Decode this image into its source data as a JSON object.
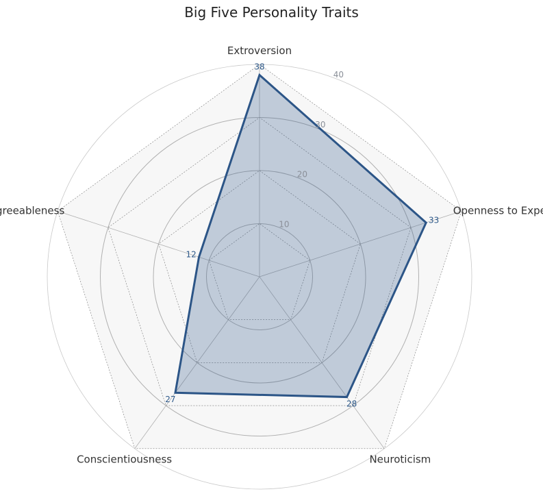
{
  "chart_data": {
    "type": "radar",
    "title": "Big Five Personality Traits",
    "axes": [
      "Openness to Experience",
      "Extroversion",
      "Agreeableness",
      "Conscientiousness",
      "Neuroticism"
    ],
    "series": [
      {
        "values": [
          33,
          38,
          12,
          27,
          28
        ]
      }
    ],
    "radial_ticks": [
      10,
      20,
      30,
      40
    ],
    "rlim": [
      0,
      40
    ],
    "colors": {
      "series": "#2c5587",
      "fill": "rgba(44,85,135,0.27)",
      "grid": "#b0b0b0",
      "outer_fill": "#f7f7f7"
    }
  }
}
